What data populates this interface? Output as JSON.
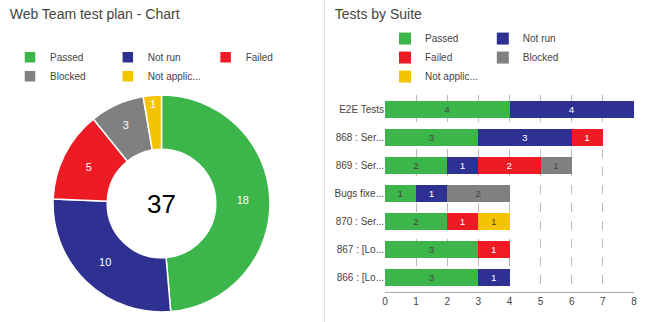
{
  "chart_data": [
    {
      "type": "donut",
      "title": "Web Team test plan - Chart",
      "categories": [
        "Passed",
        "Not run",
        "Failed",
        "Blocked",
        "Not applic..."
      ],
      "values": [
        18,
        10,
        5,
        3,
        1
      ],
      "colors": [
        "#3cb54a",
        "#2e3192",
        "#ed1c24",
        "#808080",
        "#f5c400"
      ],
      "data_labels": true,
      "legend": "top",
      "annotations": [
        "37"
      ]
    },
    {
      "type": "bar",
      "title": "Tests by Suite",
      "orientation": "horizontal",
      "stacked": true,
      "categories": [
        "E2E Tests",
        "868 : Ser...",
        "869 : Ser...",
        "Bugs fixe...",
        "870 : Ser...",
        "867 : [Lo...",
        "866 : [Lo..."
      ],
      "series": [
        {
          "name": "Passed",
          "color": "#3cb54a",
          "values": [
            4,
            3,
            2,
            1,
            2,
            3,
            3
          ]
        },
        {
          "name": "Not run",
          "color": "#2e3192",
          "values": [
            4,
            3,
            1,
            1,
            0,
            0,
            1
          ]
        },
        {
          "name": "Failed",
          "color": "#ed1c24",
          "values": [
            0,
            1,
            2,
            0,
            1,
            1,
            0
          ]
        },
        {
          "name": "Blocked",
          "color": "#808080",
          "values": [
            0,
            0,
            1,
            2,
            0,
            0,
            0
          ]
        },
        {
          "name": "Not applic...",
          "color": "#f5c400",
          "values": [
            0,
            0,
            0,
            0,
            1,
            0,
            0
          ]
        }
      ],
      "xlim": [
        0,
        8
      ],
      "xticks": [
        0,
        1,
        2,
        3,
        4,
        5,
        6,
        7,
        8
      ],
      "grid": true,
      "data_labels": true,
      "legend": "top"
    }
  ]
}
